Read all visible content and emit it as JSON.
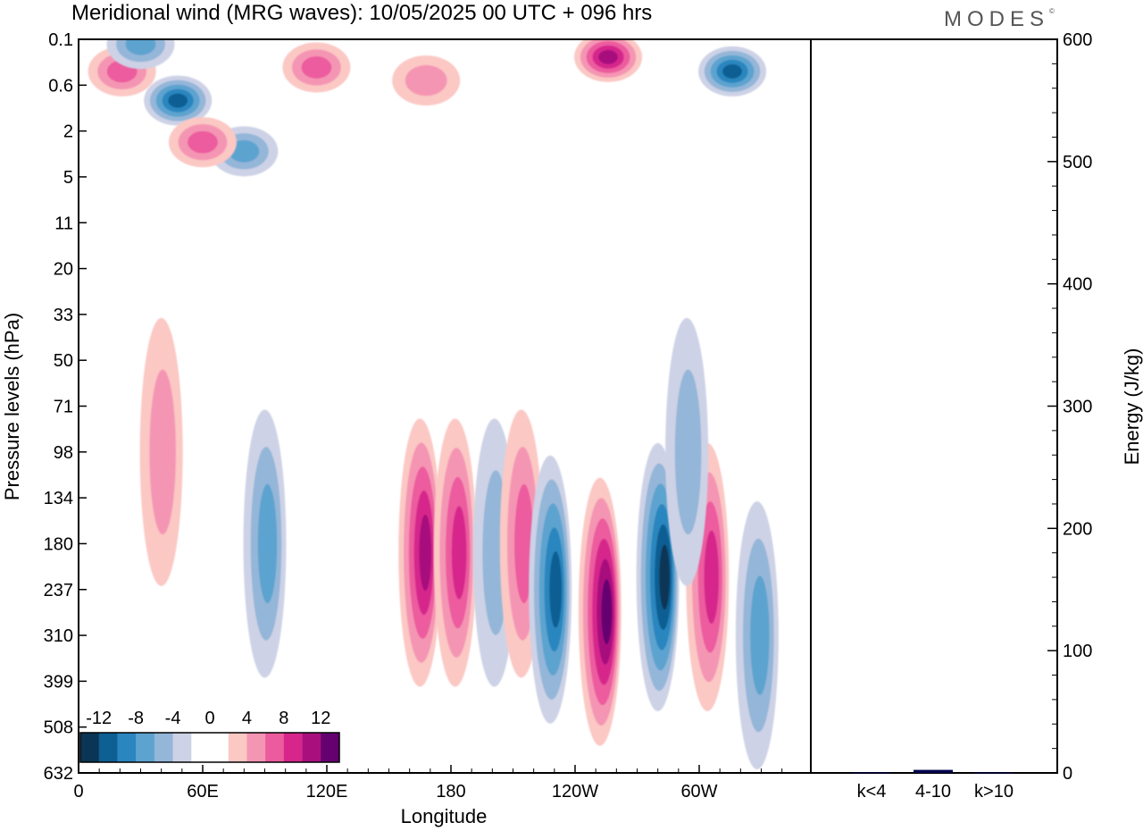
{
  "header": {
    "title": "Meridional wind (MRG waves):  10/05/2025  00 UTC  + 096 hrs",
    "logo": "MODES",
    "logo_mark": "©"
  },
  "chart_data": [
    {
      "type": "heatmap",
      "title": "Meridional wind (MRG waves):  10/05/2025  00 UTC  + 096 hrs",
      "xlabel": "Longitude",
      "ylabel": "Pressure levels (hPa)",
      "x_ticks": [
        "0",
        "60E",
        "120E",
        "180",
        "120W",
        "60W"
      ],
      "x_tick_degrees": [
        0,
        60,
        120,
        180,
        240,
        300
      ],
      "xlim": [
        0,
        340
      ],
      "y_ticks": [
        "0.1",
        "0.6",
        "2",
        "5",
        "11",
        "20",
        "33",
        "50",
        "71",
        "98",
        "134",
        "180",
        "237",
        "310",
        "399",
        "508",
        "632"
      ],
      "colorbar": {
        "labels": [
          "-12",
          "-8",
          "-4",
          "0",
          "4",
          "8",
          "12"
        ],
        "colors": [
          "#0a3554",
          "#0e5f93",
          "#2b86bf",
          "#5da3cf",
          "#94b6d8",
          "#cdd2e6",
          "#ffffff",
          "#ffffff",
          "#fbc8c4",
          "#f595b4",
          "#ec5b9e",
          "#d6268c",
          "#a8107e",
          "#650070"
        ]
      },
      "features": [
        {
          "x": 21,
          "level": 0.35,
          "value": 6
        },
        {
          "x": 48,
          "level": 0.9,
          "value": -9
        },
        {
          "x": 30,
          "level": 0.12,
          "value": -5
        },
        {
          "x": 115,
          "level": 0.3,
          "value": 5
        },
        {
          "x": 168,
          "level": 0.5,
          "value": 4
        },
        {
          "x": 256,
          "level": 0.2,
          "value": 10
        },
        {
          "x": 316,
          "level": 0.35,
          "value": -10
        },
        {
          "x": 80,
          "level": 3,
          "value": -5
        },
        {
          "x": 60,
          "level": 2.5,
          "value": 5
        },
        {
          "x": 40,
          "level": 98,
          "value": 4
        },
        {
          "x": 90,
          "level": 180,
          "value": -6
        },
        {
          "x": 165,
          "level": 190,
          "value": 10
        },
        {
          "x": 182,
          "level": 190,
          "value": 8
        },
        {
          "x": 201,
          "level": 190,
          "value": -4
        },
        {
          "x": 214,
          "level": 180,
          "value": 5
        },
        {
          "x": 228,
          "level": 237,
          "value": -9
        },
        {
          "x": 252,
          "level": 270,
          "value": 12
        },
        {
          "x": 280,
          "level": 220,
          "value": -13
        },
        {
          "x": 304,
          "level": 220,
          "value": 8
        },
        {
          "x": 294,
          "level": 98,
          "value": -4
        },
        {
          "x": 328,
          "level": 310,
          "value": -5
        }
      ]
    },
    {
      "type": "bar",
      "xlabel": "",
      "ylabel": "Energy (J/kg)",
      "categories": [
        "k<4",
        "4-10",
        "k>10"
      ],
      "values": [
        0.5,
        2.5,
        0.3
      ],
      "ylim": [
        0,
        600
      ],
      "y_ticks": [
        "0",
        "100",
        "200",
        "300",
        "400",
        "500",
        "600"
      ],
      "bar_color": "#00004d"
    }
  ]
}
